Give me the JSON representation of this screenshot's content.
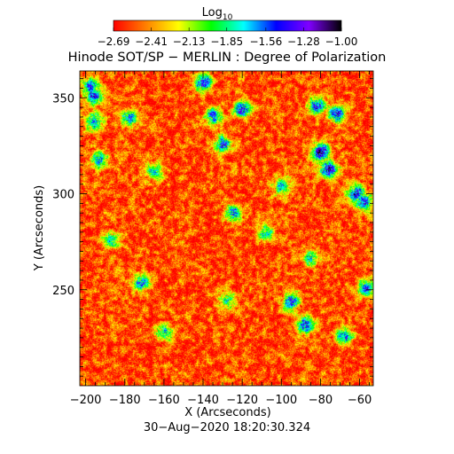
{
  "chart_data": {
    "type": "heatmap",
    "title": "Hinode SOT/SP − MERLIN : Degree of Polarization",
    "xlabel": "X (Arcseconds)",
    "ylabel": "Y (Arcseconds)",
    "timestamp": "30−Aug−2020 18:20:30.324",
    "xlim": [
      -203,
      -53
    ],
    "ylim": [
      200,
      364
    ],
    "x_ticks": [
      -200,
      -180,
      -160,
      -140,
      -120,
      -100,
      -80,
      -60
    ],
    "x_tick_labels": [
      "−200",
      "−180",
      "−160",
      "−140",
      "−120",
      "−100",
      "−80",
      "−60"
    ],
    "y_ticks": [
      250,
      300,
      350
    ],
    "y_tick_labels": [
      "250",
      "300",
      "350"
    ],
    "colorbar": {
      "label_base": "Log",
      "label_sub": "10",
      "min": -2.69,
      "max": -1.0,
      "ticks": [
        -2.69,
        -2.41,
        -2.13,
        -1.85,
        -1.56,
        -1.28,
        -1.0
      ],
      "tick_labels": [
        "−2.69",
        "−2.41",
        "−2.13",
        "−1.85",
        "−1.56",
        "−1.28",
        "−1.00"
      ],
      "colormap": [
        "#ff0000",
        "#ff8000",
        "#ffff00",
        "#00ff00",
        "#00ffff",
        "#0000ff",
        "#8000ff",
        "#000000"
      ]
    },
    "background_level": -2.55,
    "features": [
      {
        "x": -198,
        "y": 356,
        "level": -1.55
      },
      {
        "x": -196,
        "y": 351,
        "level": -1.45
      },
      {
        "x": -196,
        "y": 338,
        "level": -1.6
      },
      {
        "x": -193,
        "y": 318,
        "level": -1.7
      },
      {
        "x": -187,
        "y": 276,
        "level": -1.8
      },
      {
        "x": -178,
        "y": 340,
        "level": -1.6
      },
      {
        "x": -172,
        "y": 254,
        "level": -1.55
      },
      {
        "x": -165,
        "y": 312,
        "level": -1.8
      },
      {
        "x": -140,
        "y": 358,
        "level": -1.4
      },
      {
        "x": -135,
        "y": 341,
        "level": -1.55
      },
      {
        "x": -130,
        "y": 326,
        "level": -1.5
      },
      {
        "x": -128,
        "y": 245,
        "level": -1.75
      },
      {
        "x": -125,
        "y": 290,
        "level": -1.6
      },
      {
        "x": -120,
        "y": 344,
        "level": -1.35
      },
      {
        "x": -108,
        "y": 280,
        "level": -1.8
      },
      {
        "x": -100,
        "y": 304,
        "level": -1.7
      },
      {
        "x": -95,
        "y": 244,
        "level": -1.45
      },
      {
        "x": -88,
        "y": 232,
        "level": -1.4
      },
      {
        "x": -85,
        "y": 267,
        "level": -1.75
      },
      {
        "x": -82,
        "y": 346,
        "level": -1.45
      },
      {
        "x": -80,
        "y": 322,
        "level": -1.15
      },
      {
        "x": -76,
        "y": 313,
        "level": -1.2
      },
      {
        "x": -72,
        "y": 342,
        "level": -1.4
      },
      {
        "x": -68,
        "y": 226,
        "level": -1.6
      },
      {
        "x": -62,
        "y": 300,
        "level": -1.3
      },
      {
        "x": -58,
        "y": 296,
        "level": -1.4
      },
      {
        "x": -57,
        "y": 251,
        "level": -1.55
      },
      {
        "x": -160,
        "y": 228,
        "level": -1.8
      }
    ]
  }
}
